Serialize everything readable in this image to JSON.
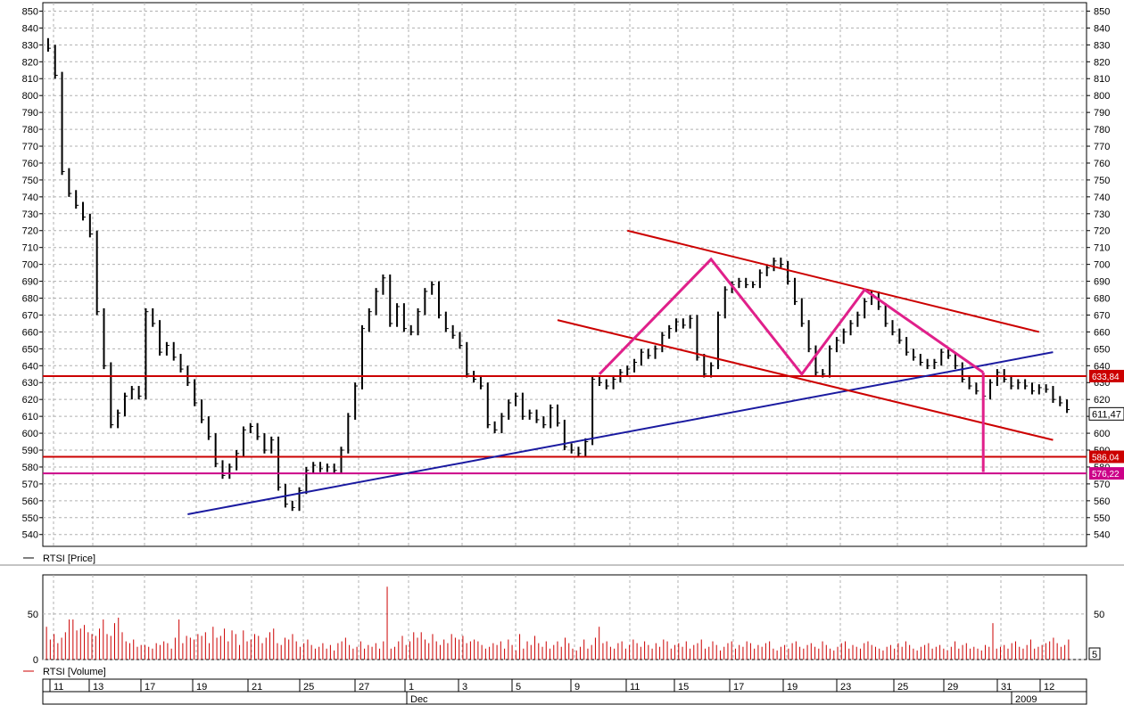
{
  "chart_data": [
    {
      "type": "ohlc",
      "legend": "RTSI [Price]",
      "ylim": [
        533,
        855
      ],
      "y_ticks": [
        540,
        550,
        560,
        570,
        580,
        590,
        600,
        610,
        620,
        630,
        640,
        650,
        660,
        670,
        680,
        690,
        700,
        710,
        720,
        730,
        740,
        750,
        760,
        770,
        780,
        790,
        800,
        810,
        820,
        830,
        840,
        850
      ],
      "grid": true,
      "series_color": "#000000",
      "close_series": [
        828,
        812,
        755,
        742,
        735,
        728,
        718,
        672,
        640,
        605,
        612,
        622,
        626,
        622,
        672,
        665,
        648,
        652,
        645,
        638,
        630,
        618,
        608,
        598,
        582,
        575,
        580,
        588,
        602,
        604,
        598,
        590,
        596,
        568,
        558,
        556,
        566,
        578,
        581,
        579,
        580,
        578,
        590,
        610,
        628,
        662,
        672,
        684,
        692,
        665,
        675,
        662,
        660,
        672,
        684,
        688,
        670,
        662,
        658,
        652,
        635,
        632,
        628,
        605,
        602,
        610,
        618,
        622,
        610,
        612,
        608,
        605,
        615,
        606,
        592,
        590,
        588,
        595,
        632,
        630,
        628,
        632,
        636,
        638,
        642,
        648,
        646,
        650,
        658,
        662,
        666,
        664,
        668,
        645,
        635,
        640,
        670,
        685,
        688,
        690,
        688,
        688,
        695,
        698,
        702,
        700,
        690,
        678,
        665,
        650,
        636,
        635,
        650,
        655,
        660,
        665,
        670,
        678,
        682,
        675,
        665,
        660,
        655,
        648,
        645,
        642,
        640,
        642,
        648,
        646,
        640,
        632,
        628,
        625,
        622,
        630,
        636,
        632,
        628,
        630,
        628,
        625,
        627,
        626,
        620,
        618,
        614
      ],
      "level_labels": [
        "633,84",
        "611,47",
        "586,04",
        "576,22"
      ],
      "levels": [
        {
          "value": 633.84,
          "color": "#cc0000"
        },
        {
          "value": 586.04,
          "color": "#cc0000"
        },
        {
          "value": 576.22,
          "color": "#cc0088"
        }
      ],
      "last_value_color": "#000000",
      "trend_lines": [
        {
          "from": [
            20,
            552
          ],
          "to": [
            144,
            648
          ],
          "color": "#1a1aa0"
        },
        {
          "from": [
            83,
            720
          ],
          "to": [
            142,
            660
          ],
          "color": "#cc0000"
        },
        {
          "from": [
            73,
            667
          ],
          "to": [
            144,
            596
          ],
          "color": "#cc0000"
        }
      ],
      "pattern_lines": [
        {
          "points": [
            [
              79,
              635
            ],
            [
              95,
              703
            ],
            [
              108,
              635
            ],
            [
              117,
              685
            ],
            [
              134,
              636
            ]
          ],
          "color": "#e0208a"
        },
        {
          "points": [
            [
              134,
              636
            ],
            [
              134,
              577
            ]
          ],
          "color": "#e0208a"
        }
      ]
    },
    {
      "type": "bar",
      "legend": "RTSI [Volume]",
      "ylim": [
        0,
        93
      ],
      "y_ticks": [
        0,
        50
      ],
      "right_ticks": [
        "50"
      ],
      "last_value_label": "5",
      "series_color": "#cc0000",
      "values": [
        36,
        22,
        28,
        18,
        24,
        30,
        44,
        44,
        32,
        34,
        38,
        30,
        28,
        26,
        34,
        44,
        28,
        26,
        40,
        46,
        30,
        20,
        18,
        22,
        14,
        16,
        16,
        14,
        12,
        18,
        16,
        20,
        18,
        12,
        24,
        44,
        18,
        26,
        24,
        22,
        28,
        26,
        30,
        18,
        36,
        24,
        26,
        34,
        20,
        32,
        28,
        16,
        32,
        20,
        22,
        28,
        26,
        18,
        24,
        30,
        34,
        18,
        16,
        24,
        22,
        28,
        20,
        14,
        18,
        22,
        16,
        12,
        14,
        18,
        12,
        16,
        10,
        18,
        20,
        24,
        16,
        12,
        14,
        20,
        12,
        16,
        14,
        18,
        12,
        20,
        80,
        12,
        14,
        20,
        26,
        16,
        20,
        30,
        24,
        30,
        22,
        18,
        28,
        20,
        16,
        22,
        18,
        28,
        24,
        22,
        26,
        18,
        20,
        22,
        20,
        16,
        12,
        14,
        18,
        16,
        20,
        12,
        22,
        16,
        10,
        28,
        12,
        20,
        16,
        26,
        18,
        14,
        20,
        12,
        16,
        20,
        14,
        24,
        18,
        12,
        10,
        14,
        22,
        12,
        16,
        24,
        36,
        18,
        20,
        14,
        12,
        18,
        20,
        12,
        16,
        22,
        18,
        14,
        20,
        16,
        12,
        18,
        14,
        22,
        20,
        12,
        16,
        18,
        14,
        20,
        12,
        16,
        18,
        22,
        12,
        14,
        20,
        16,
        10,
        14,
        18,
        20,
        12,
        16,
        14,
        20,
        18,
        12,
        16,
        14,
        18,
        20,
        12,
        10,
        14,
        16,
        12,
        18,
        20,
        14,
        12,
        16,
        18,
        14,
        12,
        20,
        16,
        12,
        10,
        14,
        18,
        20,
        12,
        16,
        14,
        12,
        18,
        20,
        16,
        14,
        12,
        10,
        14,
        16,
        12,
        18,
        14,
        20,
        16,
        12,
        10,
        14,
        16,
        18,
        12,
        14,
        16,
        12,
        10,
        14,
        20,
        12,
        16,
        18,
        12,
        14,
        12,
        10,
        16,
        14,
        40,
        12,
        14,
        16,
        12,
        18,
        20,
        14,
        12,
        16,
        22,
        12,
        14,
        16,
        18,
        20,
        24,
        18,
        14,
        16,
        22
      ],
      "x_tick_labels": [
        "11",
        "13",
        "17",
        "19",
        "21",
        "25",
        "27",
        "1",
        "3",
        "5",
        "9",
        "11",
        "15",
        "17",
        "19",
        "23",
        "25",
        "29",
        "31",
        "12"
      ],
      "x_period_labels": [
        "Dec",
        "2009"
      ]
    }
  ]
}
